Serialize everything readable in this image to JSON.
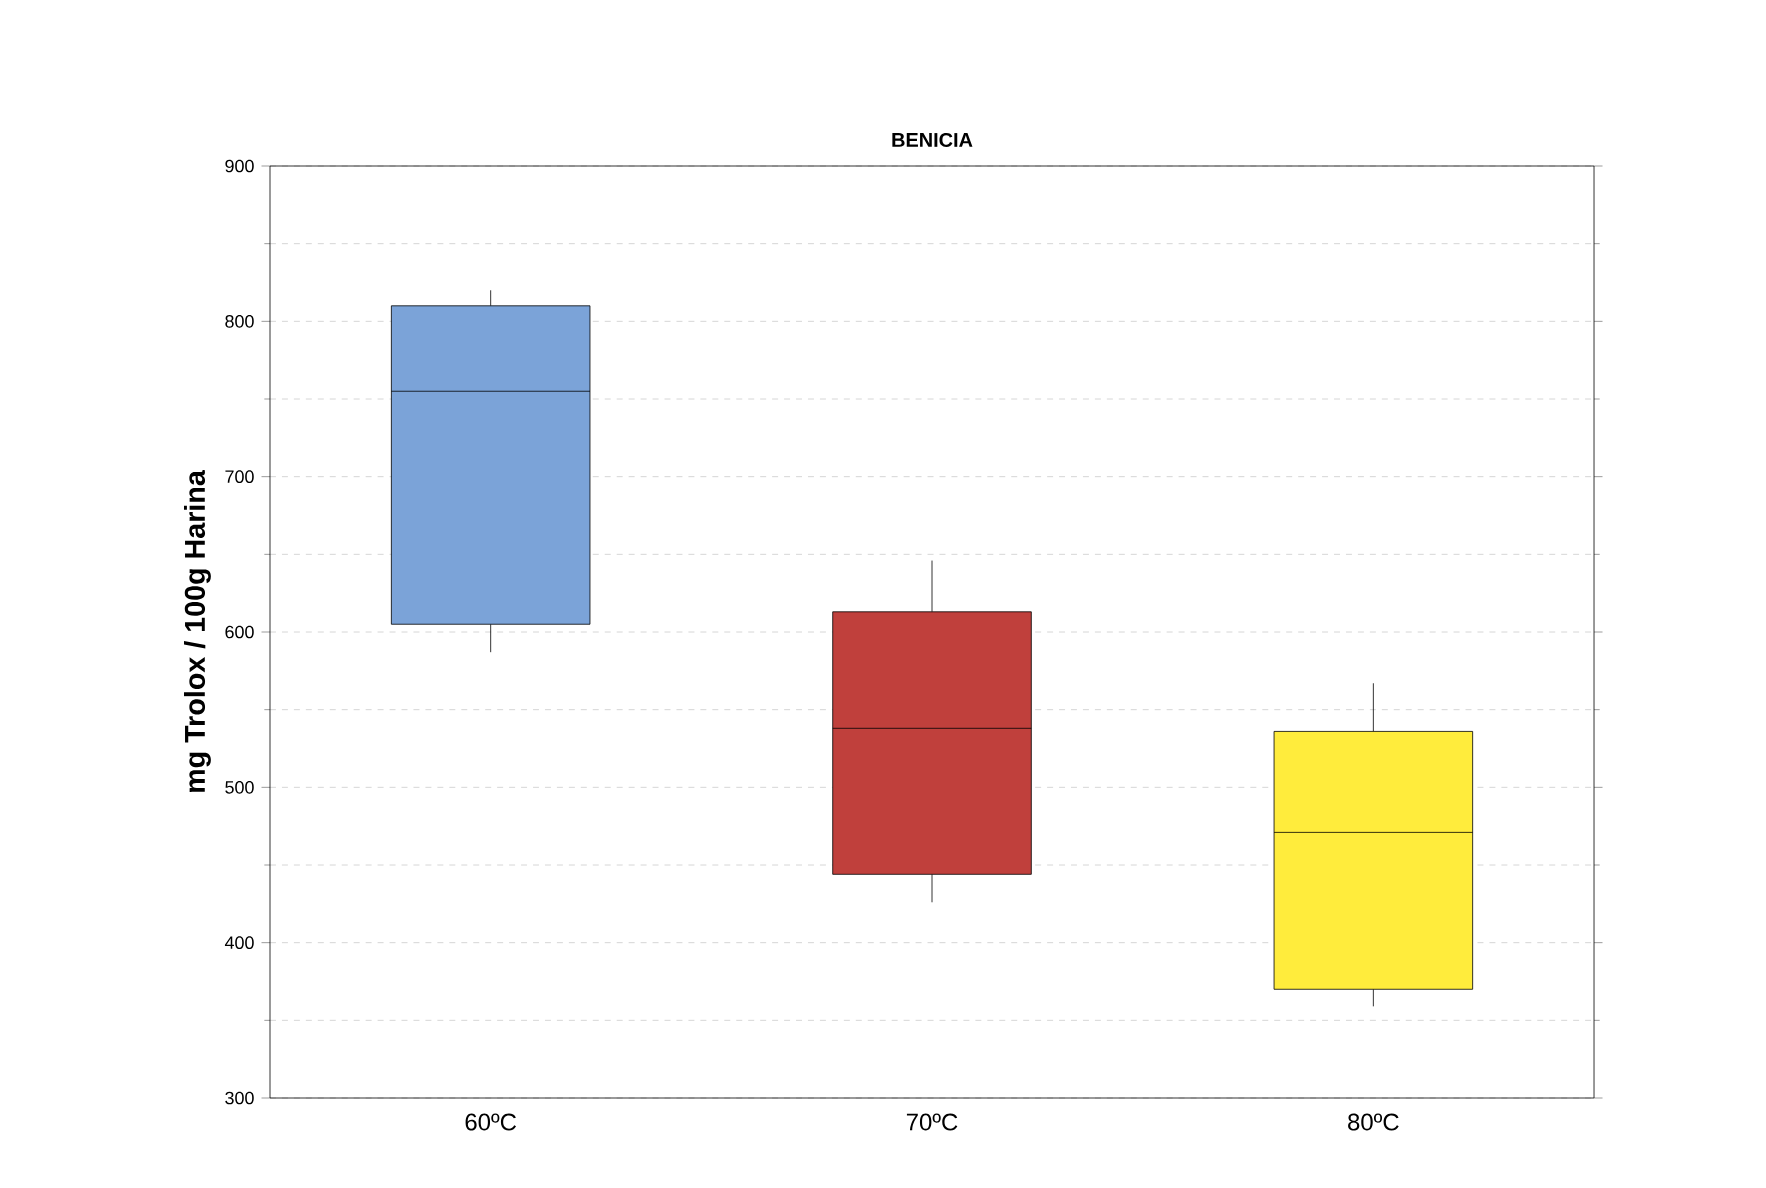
{
  "chart_data": {
    "type": "box",
    "title": "BENICIA",
    "ylabel": "mg Trolox / 100g Harina",
    "categories": [
      "60ºC",
      "70ºC",
      "80ºC"
    ],
    "colors": [
      "#7ba3d8",
      "#c0403c",
      "#ffec3c"
    ],
    "boxes": [
      {
        "low": 587,
        "q1": 605,
        "median": 755,
        "q3": 810,
        "high": 820
      },
      {
        "low": 426,
        "q1": 444,
        "median": 538,
        "q3": 613,
        "high": 646
      },
      {
        "low": 359,
        "q1": 370,
        "median": 471,
        "q3": 536,
        "high": 567
      }
    ],
    "ylim": [
      300,
      900
    ],
    "yticks": [
      300,
      400,
      500,
      600,
      700,
      800,
      900
    ],
    "grid": "y"
  }
}
